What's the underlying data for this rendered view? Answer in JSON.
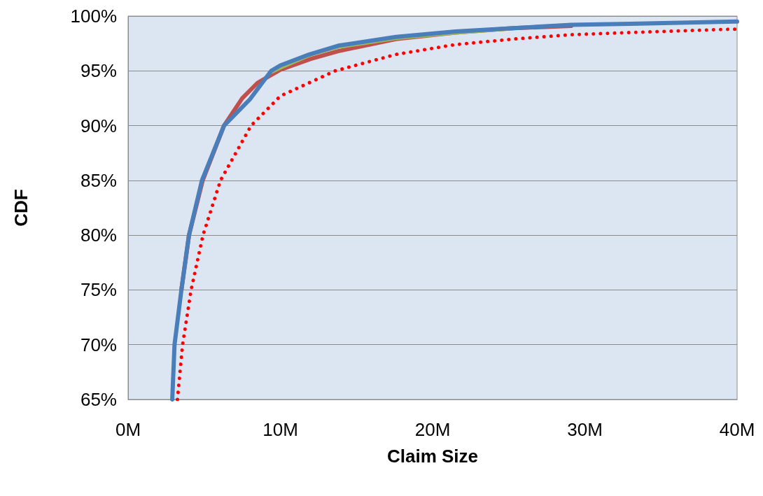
{
  "chart_data": {
    "type": "line",
    "xlabel": "Claim Size",
    "ylabel": "CDF",
    "xlim": [
      0,
      40
    ],
    "xticks": [
      {
        "value": 0,
        "label": "0M"
      },
      {
        "value": 10,
        "label": "10M"
      },
      {
        "value": 20,
        "label": "20M"
      },
      {
        "value": 30,
        "label": "30M"
      },
      {
        "value": 40,
        "label": "40M"
      }
    ],
    "ylim": [
      65,
      100
    ],
    "yticks": [
      {
        "value": 65,
        "label": "65%"
      },
      {
        "value": 70,
        "label": "70%"
      },
      {
        "value": 75,
        "label": "75%"
      },
      {
        "value": 80,
        "label": "80%"
      },
      {
        "value": 85,
        "label": "85%"
      },
      {
        "value": 90,
        "label": "90%"
      },
      {
        "value": 95,
        "label": "95%"
      },
      {
        "value": 100,
        "label": "100%"
      }
    ],
    "grid": "y",
    "marker": "none",
    "series": [
      {
        "color": "#ff0000",
        "line_style": "dotted",
        "x": [
          3.24,
          3.58,
          4.14,
          4.92,
          6.07,
          8.08,
          10,
          13.6,
          17.6,
          21.5,
          25.3,
          29.1,
          33,
          39.5,
          40
        ],
        "values": [
          65,
          70,
          75,
          80,
          85,
          90,
          92.7,
          95,
          96.5,
          97.4,
          97.9,
          98.3,
          98.5,
          98.8,
          98.8
        ]
      },
      {
        "color": "#c0504d",
        "line_style": "solid",
        "x": [
          3.5,
          4,
          4.9,
          6.3,
          7.5,
          8.5,
          10,
          12,
          13.8,
          17.6,
          21.5,
          25.3,
          29.1
        ],
        "values": [
          75,
          80,
          85,
          90,
          92.5,
          93.9,
          95.1,
          96.1,
          96.8,
          97.9,
          98.5,
          98.9,
          99.1
        ]
      },
      {
        "color": "#9bbb59",
        "line_style": "solid",
        "x": [
          9.4,
          10,
          12,
          13.8,
          17.6,
          21.5,
          25.3
        ],
        "values": [
          94.8,
          95.2,
          96.4,
          97.1,
          97.9,
          98.4,
          98.8
        ]
      },
      {
        "color": "#4a7ebb",
        "line_style": "solid",
        "x": [
          2.9,
          3.05,
          3.5,
          4,
          4.85,
          6.3,
          8,
          9.4,
          10,
          11.9,
          13.8,
          17.6,
          21.5,
          25.3,
          29.1,
          33,
          40
        ],
        "values": [
          65,
          70,
          75,
          80,
          85,
          90,
          92.4,
          95,
          95.5,
          96.5,
          97.3,
          98.1,
          98.6,
          98.9,
          99.2,
          99.3,
          99.5
        ]
      }
    ]
  }
}
